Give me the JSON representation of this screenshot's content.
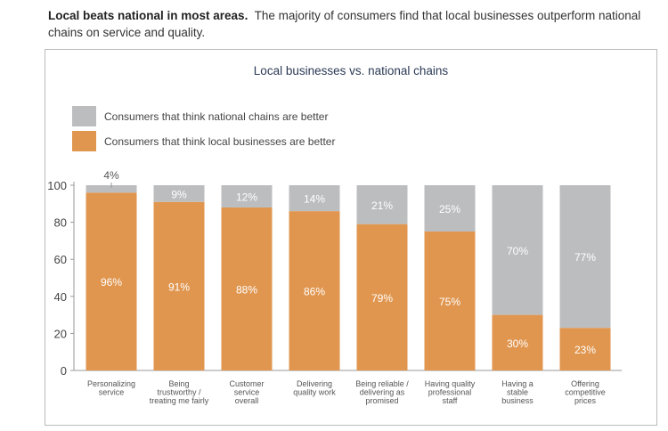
{
  "intro": {
    "bold": "Local beats national in most areas.",
    "text": "The majority of consumers find that local businesses outperform national chains on service and quality."
  },
  "chart_data": {
    "type": "bar",
    "stacked": true,
    "title": "Local businesses vs. national chains",
    "categories": [
      [
        "Personalizing",
        "service"
      ],
      [
        "Being",
        "trustworthy /",
        "treating me fairly"
      ],
      [
        "Customer",
        "service",
        "overall"
      ],
      [
        "Delivering",
        "quality work"
      ],
      [
        "Being reliable /",
        "delivering as",
        "promised"
      ],
      [
        "Having quality",
        "professional",
        "staff"
      ],
      [
        "Having a",
        "stable",
        "business"
      ],
      [
        "Offering",
        "competitive",
        "prices"
      ]
    ],
    "series": [
      {
        "name": "Consumers that think local businesses are better",
        "color": "#e0964f",
        "values": [
          96,
          91,
          88,
          86,
          79,
          75,
          30,
          23
        ]
      },
      {
        "name": "Consumers that think national chains are better",
        "color": "#bcbdbf",
        "values": [
          4,
          9,
          12,
          14,
          21,
          25,
          70,
          77
        ]
      }
    ],
    "yticks": [
      0,
      20,
      40,
      60,
      80,
      100
    ],
    "ylim": [
      0,
      100
    ],
    "grid": false,
    "legend": "top-left"
  }
}
